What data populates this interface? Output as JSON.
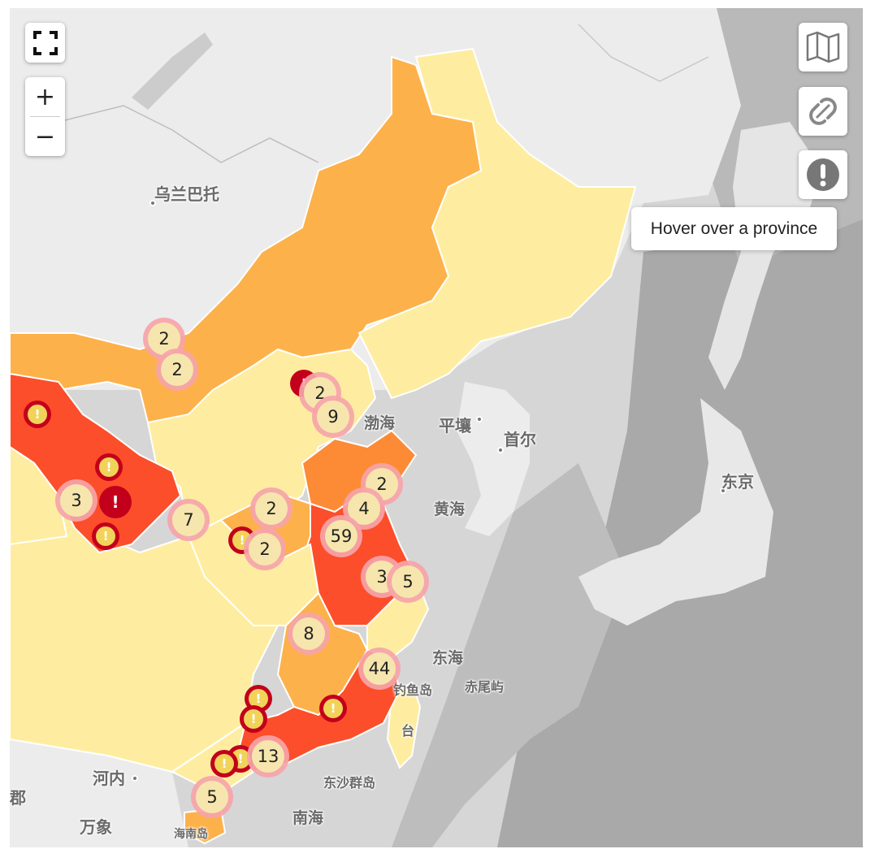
{
  "controls": {
    "zoom_in": "+",
    "zoom_out": "−",
    "fullscreen_icon": "fullscreen-icon",
    "map_icon": "map-icon",
    "link_icon": "link-icon",
    "alert_icon": "exclamation-icon"
  },
  "info": {
    "hover_text": "Hover over a province"
  },
  "labels": {
    "ulaanbaatar": "乌兰巴托",
    "bohai": "渤海",
    "pyongyang": "平壤",
    "seoul": "首尔",
    "tokyo": "东京",
    "yellow_sea": "黄海",
    "east_sea": "东海",
    "diaoyu": "钓鱼岛",
    "chiwei": "赤尾屿",
    "dongsha": "东沙群岛",
    "south_sea": "南海",
    "hanoi": "河内",
    "vientiane": "万象",
    "hainan": "海南岛",
    "taiwan": "台",
    "edge_char": "郡"
  },
  "clusters": {
    "mongolia_a": "2",
    "mongolia_b": "2",
    "beijing": "9",
    "beijing_hidden": "2",
    "shandong": "2",
    "jiangsu_a": "4",
    "jiangsu_main": "59",
    "shanghai": "3",
    "shanghai_b": "5",
    "sichuan": "3",
    "shaanxi": "7",
    "henan_a": "2",
    "hubei": "2",
    "jiangxi": "8",
    "fujian": "44",
    "guangdong": "13",
    "guangxi": "5"
  },
  "alert_glyph": "!",
  "colors": {
    "light": "#feeda0",
    "medium": "#fdb14a",
    "orange": "#fd8a35",
    "red": "#fc4e2a",
    "alert": "#c3001c",
    "cluster_ring": "#f6a4aa",
    "cluster_fill": "#f6e6ad"
  }
}
